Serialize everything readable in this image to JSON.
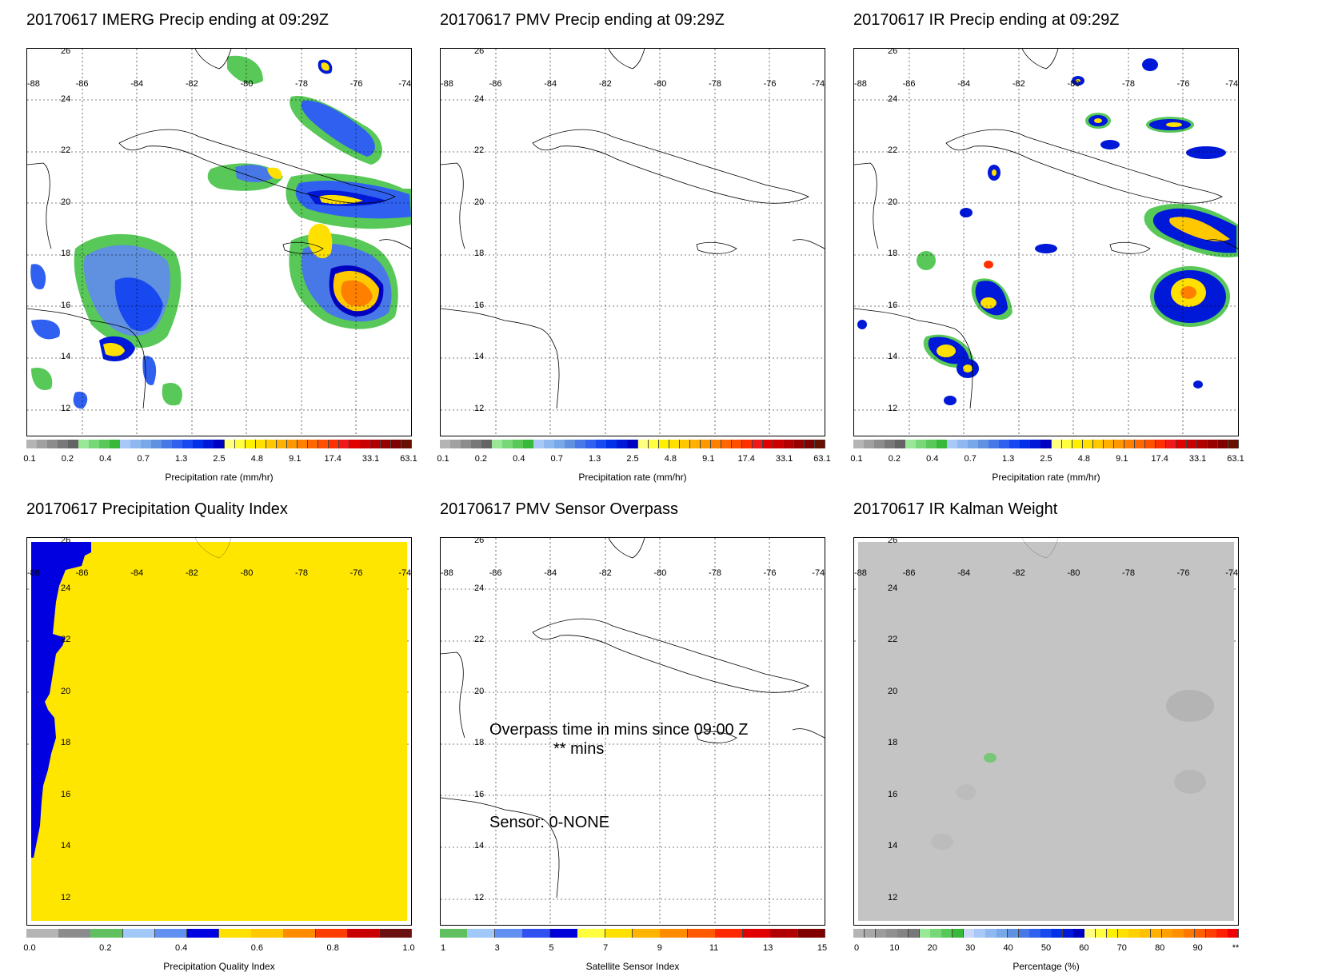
{
  "panels": [
    {
      "title": "20170617 IMERG Precip ending at 09:29Z",
      "scale_key": "precip"
    },
    {
      "title": "20170617 PMV Precip ending at 09:29Z",
      "scale_key": "precip"
    },
    {
      "title": "20170617 IR Precip ending at 09:29Z",
      "scale_key": "precip"
    },
    {
      "title": "20170617 Precipitation Quality Index",
      "scale_key": "quality"
    },
    {
      "title": "20170617 PMV Sensor Overpass",
      "scale_key": "sensor"
    },
    {
      "title": "20170617 IR Kalman Weight",
      "scale_key": "kalman"
    }
  ],
  "map_axes": {
    "lon_labels": [
      "-88",
      "-86",
      "-84",
      "-82",
      "-80",
      "-78",
      "-76",
      "-74"
    ],
    "lat_labels": [
      "26",
      "24",
      "22",
      "20",
      "18",
      "16",
      "14",
      "12"
    ]
  },
  "overpass": {
    "line1": "Overpass time in mins since 09:00 Z",
    "line2": "** mins",
    "sensor": "Sensor:   0-NONE"
  },
  "scales": {
    "precip": {
      "label": "Precipitation rate (mm/hr)",
      "ticks": [
        "0.1",
        "0.2",
        "0.4",
        "0.7",
        "1.3",
        "2.5",
        "4.8",
        "9.1",
        "17.4",
        "33.1",
        "63.1"
      ],
      "colors": [
        "#b4b4b4",
        "#a0a0a0",
        "#8c8c8c",
        "#787878",
        "#646464",
        "#98e898",
        "#78d878",
        "#58c858",
        "#38b838",
        "#a8c8f8",
        "#90b8f0",
        "#78a8e8",
        "#6090e0",
        "#4878e8",
        "#3060f0",
        "#1848f0",
        "#0030e8",
        "#0018d8",
        "#0000c0",
        "#ffff80",
        "#ffff40",
        "#fff000",
        "#ffe000",
        "#ffc800",
        "#ffb000",
        "#ff9800",
        "#ff8000",
        "#ff6800",
        "#ff5000",
        "#ff3000",
        "#f01818",
        "#e00000",
        "#c80000",
        "#b00000",
        "#980000",
        "#800000",
        "#681000"
      ]
    },
    "quality": {
      "label": "Precipitation Quality Index",
      "ticks": [
        "0.0",
        "0.2",
        "0.4",
        "0.6",
        "0.8",
        "1.0"
      ],
      "colors": [
        "#b4b4b4",
        "#8c8c8c",
        "#60c060",
        "#a0c8f8",
        "#6090f0",
        "#0000e0",
        "#ffe000",
        "#ffc800",
        "#ff8c00",
        "#ff3c00",
        "#c80000",
        "#6a1010"
      ]
    },
    "sensor": {
      "label": "Satellite Sensor Index",
      "ticks": [
        "1",
        "3",
        "5",
        "7",
        "9",
        "11",
        "13",
        "15"
      ],
      "colors": [
        "#60c060",
        "#a0c8f8",
        "#6090f0",
        "#3050f0",
        "#0000d8",
        "#ffff40",
        "#ffe000",
        "#ffb400",
        "#ff8c00",
        "#ff5a00",
        "#ff2800",
        "#e00000",
        "#b00000",
        "#800000"
      ]
    },
    "kalman": {
      "label": "Percentage (%)",
      "ticks": [
        "0",
        "10",
        "20",
        "30",
        "40",
        "50",
        "60",
        "70",
        "80",
        "90",
        "**"
      ],
      "colors": [
        "#b4b4b4",
        "#a8a8a8",
        "#9c9c9c",
        "#909090",
        "#848484",
        "#787878",
        "#98e898",
        "#78d878",
        "#58c858",
        "#38b838",
        "#c8d8f8",
        "#a8c8f8",
        "#90b8f0",
        "#78a8e8",
        "#6090e0",
        "#4878e8",
        "#3060f0",
        "#1848f0",
        "#0030e8",
        "#0018d8",
        "#0000c0",
        "#ffff80",
        "#ffff40",
        "#fff000",
        "#ffe000",
        "#ffd000",
        "#ffc000",
        "#ffb000",
        "#ffa000",
        "#ff9000",
        "#ff7800",
        "#ff6000",
        "#ff4000",
        "#ff2000",
        "#f00000"
      ]
    }
  }
}
